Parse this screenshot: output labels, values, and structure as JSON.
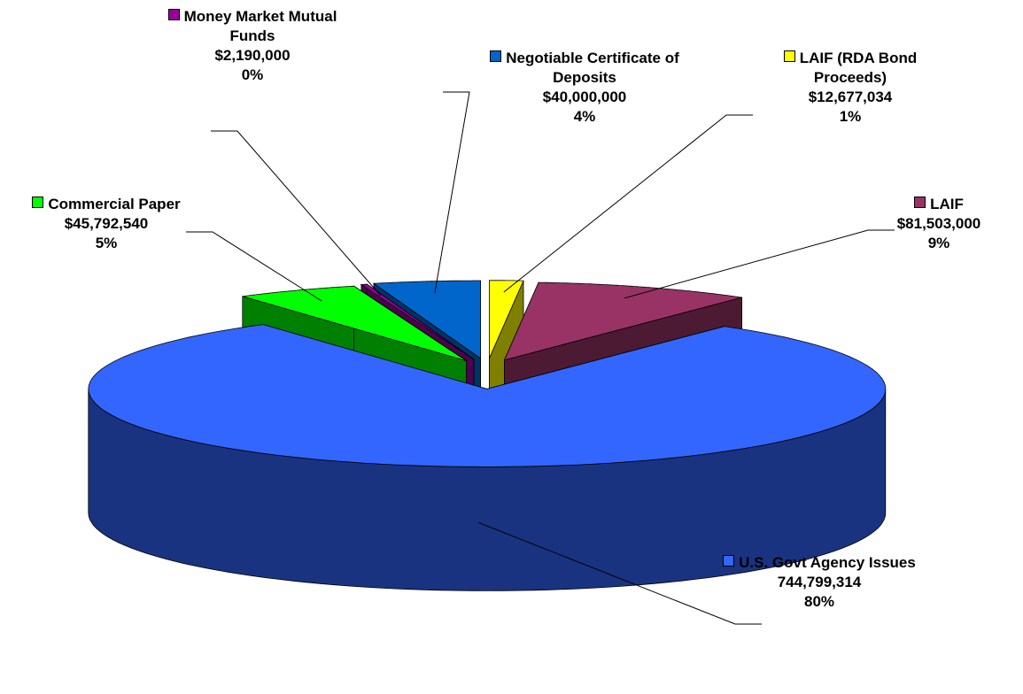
{
  "chart_data": {
    "type": "pie3d",
    "categories": [
      "LAIF (RDA Bond Proceeds)",
      "LAIF",
      "U.S. Govt Agency Issues",
      "Commercial Paper",
      "Money Market Mutual Funds",
      "Negotiable Certificate of Deposits"
    ],
    "values": [
      12677034,
      81503000,
      744799314,
      45792540,
      2190000,
      40000000
    ],
    "value_labels": [
      "$12,677,034",
      "$81,503,000",
      "744,799,314",
      "$45,792,540",
      "$2,190,000",
      "$40,000,000"
    ],
    "percent_labels": [
      "1%",
      "9%",
      "80%",
      "5%",
      "0%",
      "4%"
    ],
    "colors": [
      "#ffff00",
      "#993366",
      "#3366ff",
      "#00ff00",
      "#990099",
      "#0066cc"
    ],
    "side_colors": [
      "#808000",
      "#4d1a33",
      "#1a3380",
      "#008000",
      "#4d004d",
      "#003366"
    ]
  }
}
